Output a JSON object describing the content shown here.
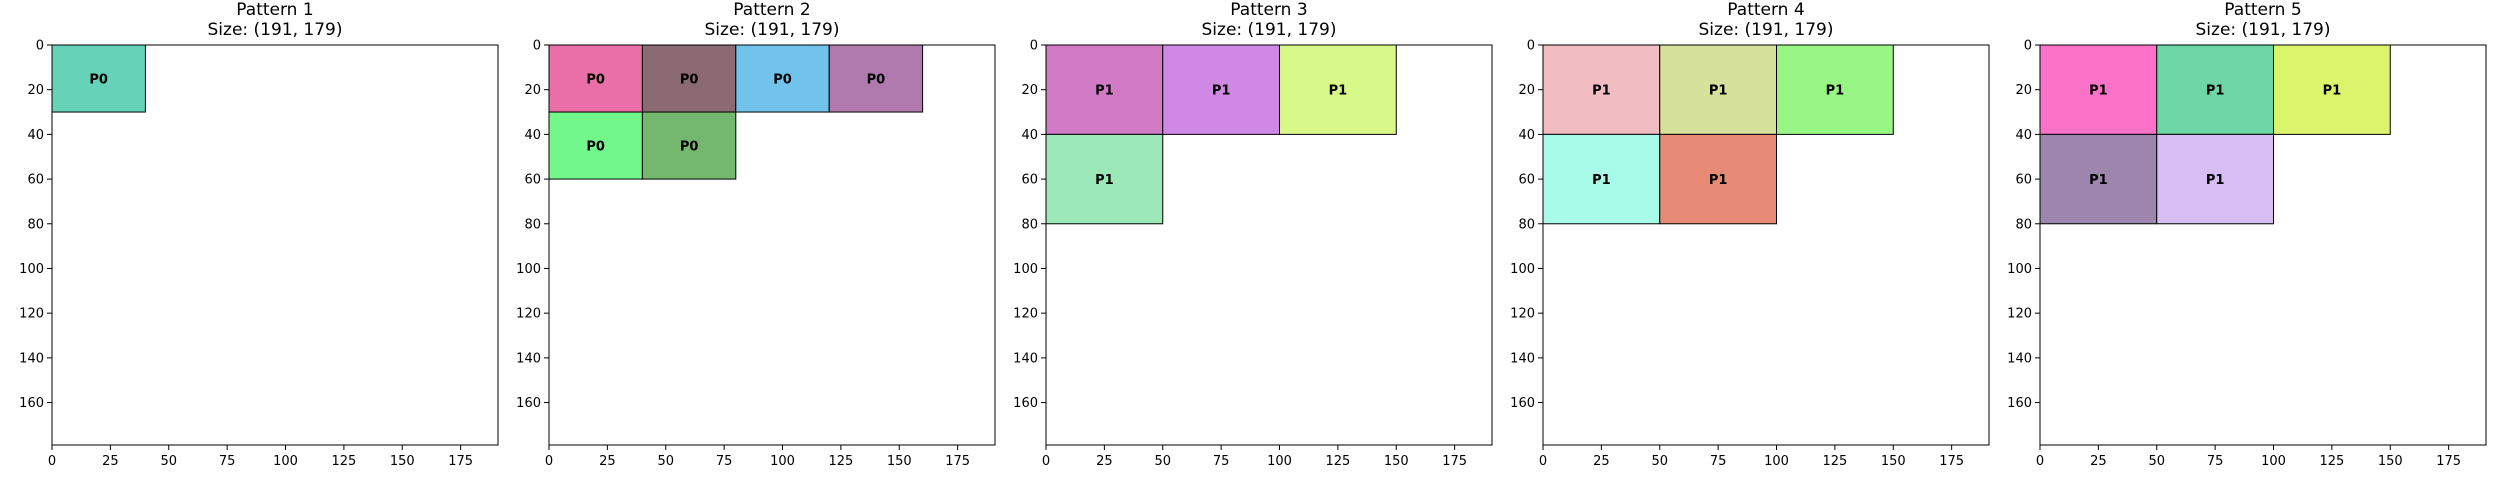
{
  "chart_data": [
    {
      "type": "rectangle-packing",
      "title": "Pattern 1",
      "subtitle": "Size: (191, 179)",
      "xlim": [
        0,
        191
      ],
      "ylim": [
        179,
        0
      ],
      "xticks": [
        0,
        25,
        50,
        75,
        100,
        125,
        150,
        175
      ],
      "yticks": [
        0,
        20,
        40,
        60,
        80,
        100,
        120,
        140,
        160
      ],
      "rects": [
        {
          "x": 0,
          "y": 0,
          "w": 40,
          "h": 30,
          "label": "P0",
          "color": "#66d3b8"
        }
      ]
    },
    {
      "type": "rectangle-packing",
      "title": "Pattern 2",
      "subtitle": "Size: (191, 179)",
      "xlim": [
        0,
        191
      ],
      "ylim": [
        179,
        0
      ],
      "xticks": [
        0,
        25,
        50,
        75,
        100,
        125,
        150,
        175
      ],
      "yticks": [
        0,
        20,
        40,
        60,
        80,
        100,
        120,
        140,
        160
      ],
      "rects": [
        {
          "x": 0,
          "y": 0,
          "w": 40,
          "h": 30,
          "label": "P0",
          "color": "#ea6fa6"
        },
        {
          "x": 40,
          "y": 0,
          "w": 40,
          "h": 30,
          "label": "P0",
          "color": "#8c6a73"
        },
        {
          "x": 80,
          "y": 0,
          "w": 40,
          "h": 30,
          "label": "P0",
          "color": "#72c3ec"
        },
        {
          "x": 120,
          "y": 0,
          "w": 40,
          "h": 30,
          "label": "P0",
          "color": "#b07aae"
        },
        {
          "x": 0,
          "y": 30,
          "w": 40,
          "h": 30,
          "label": "P0",
          "color": "#72f78a"
        },
        {
          "x": 40,
          "y": 30,
          "w": 40,
          "h": 30,
          "label": "P0",
          "color": "#74b86f"
        }
      ]
    },
    {
      "type": "rectangle-packing",
      "title": "Pattern 3",
      "subtitle": "Size: (191, 179)",
      "xlim": [
        0,
        191
      ],
      "ylim": [
        179,
        0
      ],
      "xticks": [
        0,
        25,
        50,
        75,
        100,
        125,
        150,
        175
      ],
      "yticks": [
        0,
        20,
        40,
        60,
        80,
        100,
        120,
        140,
        160
      ],
      "rects": [
        {
          "x": 0,
          "y": 0,
          "w": 50,
          "h": 40,
          "label": "P1",
          "color": "#d17bc6"
        },
        {
          "x": 50,
          "y": 0,
          "w": 50,
          "h": 40,
          "label": "P1",
          "color": "#cf89e4"
        },
        {
          "x": 100,
          "y": 0,
          "w": 50,
          "h": 40,
          "label": "P1",
          "color": "#d9f88a"
        },
        {
          "x": 0,
          "y": 40,
          "w": 50,
          "h": 40,
          "label": "P1",
          "color": "#9de8b8"
        }
      ]
    },
    {
      "type": "rectangle-packing",
      "title": "Pattern 4",
      "subtitle": "Size: (191, 179)",
      "xlim": [
        0,
        191
      ],
      "ylim": [
        179,
        0
      ],
      "xticks": [
        0,
        25,
        50,
        75,
        100,
        125,
        150,
        175
      ],
      "yticks": [
        0,
        20,
        40,
        60,
        80,
        100,
        120,
        140,
        160
      ],
      "rects": [
        {
          "x": 0,
          "y": 0,
          "w": 50,
          "h": 40,
          "label": "P1",
          "color": "#f1bcc2"
        },
        {
          "x": 50,
          "y": 0,
          "w": 50,
          "h": 40,
          "label": "P1",
          "color": "#d6e29c"
        },
        {
          "x": 100,
          "y": 0,
          "w": 50,
          "h": 40,
          "label": "P1",
          "color": "#98f784"
        },
        {
          "x": 0,
          "y": 40,
          "w": 50,
          "h": 40,
          "label": "P1",
          "color": "#a8fbe8"
        },
        {
          "x": 50,
          "y": 40,
          "w": 50,
          "h": 40,
          "label": "P1",
          "color": "#e78a76"
        }
      ]
    },
    {
      "type": "rectangle-packing",
      "title": "Pattern 5",
      "subtitle": "Size: (191, 179)",
      "xlim": [
        0,
        191
      ],
      "ylim": [
        179,
        0
      ],
      "xticks": [
        0,
        25,
        50,
        75,
        100,
        125,
        150,
        175
      ],
      "yticks": [
        0,
        20,
        40,
        60,
        80,
        100,
        120,
        140,
        160
      ],
      "rects": [
        {
          "x": 0,
          "y": 0,
          "w": 50,
          "h": 40,
          "label": "P1",
          "color": "#fb72c9"
        },
        {
          "x": 50,
          "y": 0,
          "w": 50,
          "h": 40,
          "label": "P1",
          "color": "#6fd6a8"
        },
        {
          "x": 100,
          "y": 0,
          "w": 50,
          "h": 40,
          "label": "P1",
          "color": "#dcf36c"
        },
        {
          "x": 0,
          "y": 40,
          "w": 50,
          "h": 40,
          "label": "P1",
          "color": "#9d85ad"
        },
        {
          "x": 50,
          "y": 40,
          "w": 50,
          "h": 40,
          "label": "P1",
          "color": "#d8bdf3"
        }
      ]
    }
  ]
}
